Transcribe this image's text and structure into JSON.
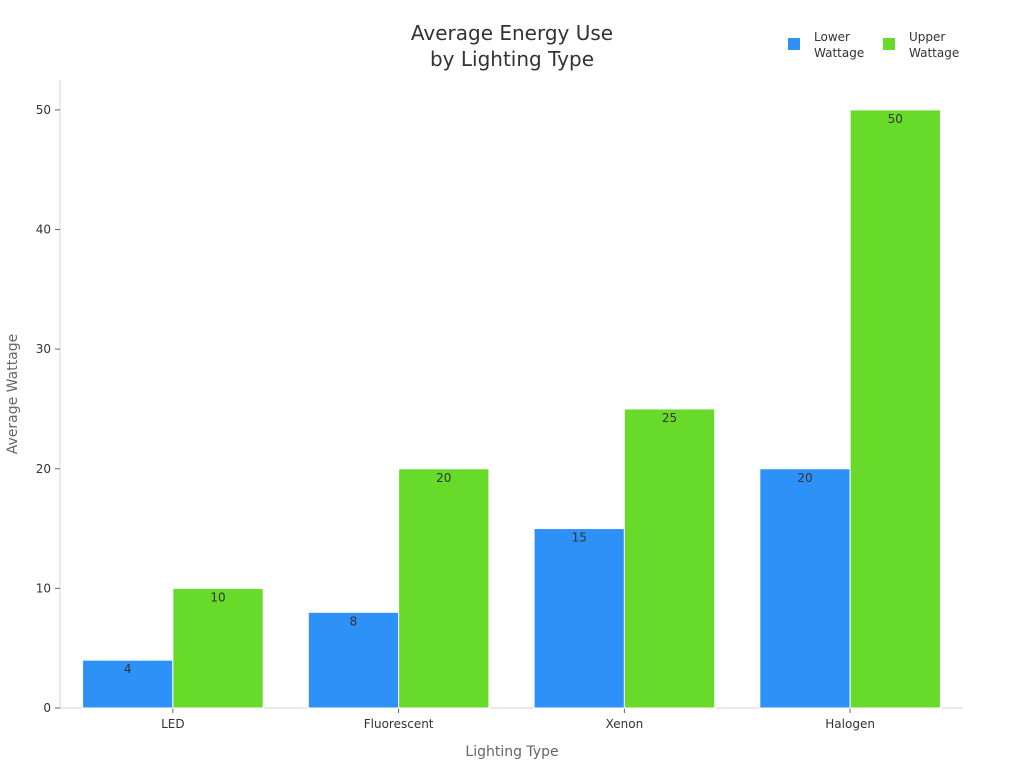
{
  "chart_data": {
    "type": "bar",
    "title_lines": [
      "Average Energy Use",
      "by Lighting Type"
    ],
    "xlabel": "Lighting Type",
    "ylabel": "Average Wattage",
    "categories": [
      "LED",
      "Fluorescent",
      "Xenon",
      "Halogen"
    ],
    "series": [
      {
        "name_lines": [
          "Lower",
          "Wattage"
        ],
        "color": "#2e91f7",
        "values": [
          4,
          8,
          15,
          20
        ]
      },
      {
        "name_lines": [
          "Upper",
          "Wattage"
        ],
        "color": "#68da2a",
        "values": [
          10,
          20,
          25,
          50
        ]
      }
    ],
    "ylim": [
      0,
      52.5
    ],
    "yticks": [
      0,
      10,
      20,
      30,
      40,
      50
    ],
    "grid": false,
    "legend_position": "top-right",
    "data_labels": true
  }
}
